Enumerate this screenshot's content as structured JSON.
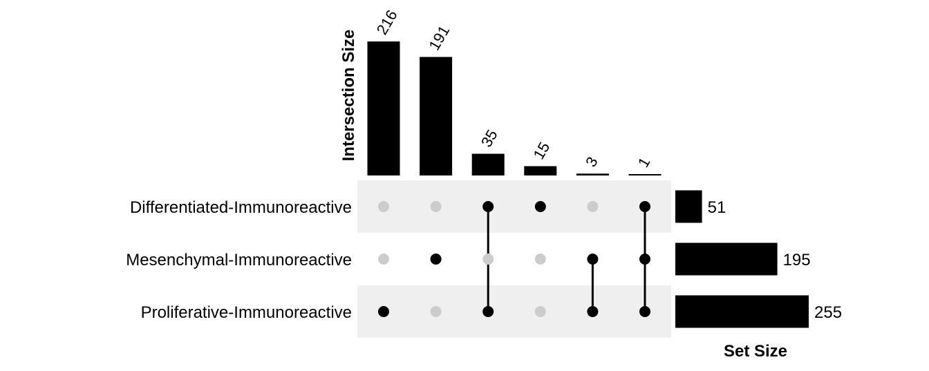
{
  "chart_data": {
    "type": "bar",
    "title": "",
    "ylabel": "Intersection Size",
    "set_size_label": "Set Size",
    "sets": [
      {
        "name": "Differentiated-Immunoreactive",
        "size": 51
      },
      {
        "name": "Mesenchymal-Immunoreactive",
        "size": 195
      },
      {
        "name": "Proliferative-Immunoreactive",
        "size": 255
      }
    ],
    "intersections": [
      {
        "value": 216,
        "members": [
          2
        ]
      },
      {
        "value": 191,
        "members": [
          1
        ]
      },
      {
        "value": 35,
        "members": [
          0,
          2
        ]
      },
      {
        "value": 15,
        "members": [
          0
        ]
      },
      {
        "value": 3,
        "members": [
          1,
          2
        ]
      },
      {
        "value": 1,
        "members": [
          0,
          1,
          2
        ]
      }
    ],
    "ylim": [
      0,
      216
    ],
    "grid": false,
    "colors": {
      "bar": "#000000",
      "active_dot": "#000000",
      "inactive_dot": "#cccccc",
      "stripe": "#efefef"
    }
  }
}
